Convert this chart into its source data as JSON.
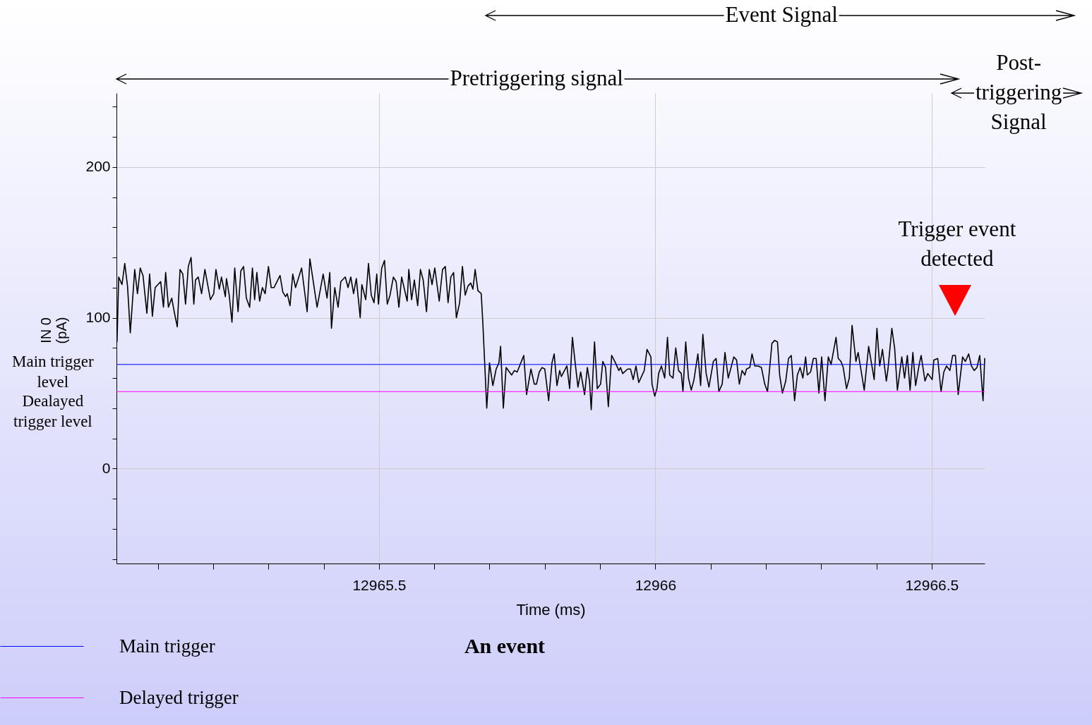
{
  "chart_data": {
    "type": "line",
    "title": "An event",
    "xlabel": "Time (ms)",
    "ylabel": "IN 0 (pA)",
    "xlim": [
      12965.025,
      12966.596
    ],
    "xticks": [
      {
        "value": 12965.1,
        "label": null
      },
      {
        "value": 12965.2,
        "label": null
      },
      {
        "value": 12965.3,
        "label": null
      },
      {
        "value": 12965.4,
        "label": null
      },
      12965.5,
      {
        "value": 12965.6,
        "label": null
      },
      {
        "value": 12965.7,
        "label": null
      },
      {
        "value": 12965.8,
        "label": null
      },
      {
        "value": 12965.9,
        "label": null
      },
      12966,
      {
        "value": 12966.1,
        "label": null
      },
      {
        "value": 12966.2,
        "label": null
      },
      {
        "value": 12966.3,
        "label": null
      },
      {
        "value": 12966.4,
        "label": null
      },
      12966.5
    ],
    "ylim": [
      -63,
      249
    ],
    "yticks": [
      {
        "value": -60,
        "label": null
      },
      {
        "value": -40,
        "label": null
      },
      {
        "value": -20,
        "label": null
      },
      0,
      {
        "value": 20,
        "label": null
      },
      {
        "value": 40,
        "label": null
      },
      {
        "value": 60,
        "label": null
      },
      {
        "value": 80,
        "label": null
      },
      100,
      {
        "value": 120,
        "label": null
      },
      {
        "value": 140,
        "label": null
      },
      {
        "value": 160,
        "label": null
      },
      {
        "value": 180,
        "label": null
      },
      200,
      {
        "value": 220,
        "label": null
      },
      {
        "value": 240,
        "label": null
      }
    ],
    "grid": true,
    "legend": "bottom left",
    "x": [
      12965.026,
      12965.029,
      12965.035,
      12965.04,
      12965.045,
      12965.05,
      12965.058,
      12965.063,
      12965.068,
      12965.073,
      12965.08,
      12965.085,
      12965.09,
      12965.095,
      12965.105,
      12965.11,
      12965.114,
      12965.119,
      12965.125,
      12965.13,
      12965.135,
      12965.14,
      12965.145,
      12965.15,
      12965.155,
      12965.16,
      12965.165,
      12965.168,
      12965.173,
      12965.179,
      12965.185,
      12965.195,
      12965.201,
      12965.205,
      12965.211,
      12965.215,
      12965.222,
      12965.224,
      12965.229,
      12965.234,
      12965.239,
      12965.245,
      12965.25,
      12965.255,
      12965.26,
      12965.266,
      12965.271,
      12965.275,
      12965.279,
      12965.284,
      12965.289,
      12965.294,
      12965.3,
      12965.305,
      12965.31,
      12965.321,
      12965.326,
      12965.331,
      12965.334,
      12965.339,
      12965.344,
      12965.349,
      12965.36,
      12965.37,
      12965.375,
      12965.388,
      12965.399,
      12965.406,
      12965.411,
      12965.414,
      12965.42,
      12965.426,
      12965.431,
      12965.439,
      12965.444,
      12965.449,
      12965.454,
      12965.459,
      12965.466,
      12965.469,
      12965.476,
      12965.481,
      12965.486,
      12965.491,
      12965.496,
      12965.499,
      12965.505,
      12965.51,
      12965.515,
      12965.52,
      12965.526,
      12965.531,
      12965.536,
      12965.541,
      12965.551,
      12965.554,
      12965.559,
      12965.564,
      12965.57,
      12965.575,
      12965.58,
      12965.586,
      12965.591,
      12965.596,
      12965.601,
      12965.609,
      12965.615,
      12965.62,
      12965.625,
      12965.63,
      12965.635,
      12965.64,
      12965.646,
      12965.651,
      12965.656,
      12965.661,
      12965.666,
      12965.67,
      12965.674,
      12965.679,
      12965.685,
      12965.688,
      12965.695,
      12965.7,
      12965.706,
      12965.712,
      12965.717,
      12965.72,
      12965.725,
      12965.73,
      12965.74,
      12965.745,
      12965.75,
      12965.762,
      12965.767,
      12965.775,
      12965.781,
      12965.785,
      12965.79,
      12965.795,
      12965.8,
      12965.807,
      12965.813,
      12965.817,
      12965.822,
      12965.827,
      12965.83,
      12965.84,
      12965.845,
      12965.85,
      12965.855,
      12965.86,
      12965.865,
      12965.872,
      12965.877,
      12965.881,
      12965.884,
      12965.89,
      12965.895,
      12965.901,
      12965.905,
      12965.91,
      12965.915,
      12965.921,
      12965.928,
      12965.934,
      12965.937,
      12965.941,
      12965.95,
      12965.955,
      12965.96,
      12965.965,
      12965.97,
      12965.98,
      12965.985,
      12965.992,
      12965.994,
      12965.999,
      12966.003,
      12966.006,
      12966.011,
      12966.017,
      12966.022,
      12966.026,
      12966.032,
      12966.037,
      12966.042,
      12966.047,
      12966.05,
      12966.055,
      12966.06,
      12966.065,
      12966.07,
      12966.077,
      12966.082,
      12966.086,
      12966.092,
      12966.097,
      12966.105,
      12966.11,
      12966.115,
      12966.121,
      12966.126,
      12966.132,
      12966.137,
      12966.142,
      12966.147,
      12966.152,
      12966.157,
      12966.162,
      12966.165,
      12966.171,
      12966.175,
      12966.18,
      12966.186,
      12966.192,
      12966.198,
      12966.203,
      12966.211,
      12966.216,
      12966.221,
      12966.225,
      12966.23,
      12966.236,
      12966.241,
      12966.246,
      12966.252,
      12966.257,
      12966.262,
      12966.267,
      12966.272,
      12966.275,
      12966.281,
      12966.286,
      12966.291,
      12966.296,
      12966.301,
      12966.307,
      12966.313,
      12966.318,
      12966.327,
      12966.331,
      12966.336,
      12966.34,
      12966.346,
      12966.351,
      12966.356,
      12966.363,
      12966.367,
      12966.378,
      12966.386,
      12966.396,
      12966.401,
      12966.406,
      12966.411,
      12966.418,
      12966.421,
      12966.428,
      12966.433,
      12966.438,
      12966.446,
      12966.451,
      12966.456,
      12966.461,
      12966.466,
      12966.471,
      12966.478,
      12966.481,
      12966.488,
      12966.493,
      12966.501,
      12966.504,
      12966.511,
      12966.517,
      12966.522,
      12966.527,
      12966.533,
      12966.538,
      12966.543,
      12966.548,
      12966.556,
      12966.561,
      12966.567,
      12966.572,
      12966.577,
      12966.582,
      12966.587,
      12966.593,
      12966.596
    ],
    "series": [
      {
        "color": "#000000",
        "values": [
          84,
          127,
          122,
          136,
          121,
          90,
          132,
          116,
          133,
          128,
          103,
          129,
          101,
          120,
          124,
          107,
          130,
          107,
          113,
          103,
          94,
          132,
          129,
          109,
          134,
          140,
          109,
          125,
          127,
          116,
          132,
          112,
          116,
          132,
          119,
          127,
          114,
          126,
          115,
          97,
          133,
          104,
          131,
          134,
          113,
          107,
          133,
          112,
          130,
          111,
          120,
          116,
          134,
          120,
          120,
          128,
          117,
          114,
          116,
          108,
          129,
          120,
          133,
          104,
          139,
          107,
          129,
          113,
          130,
          93,
          120,
          107,
          124,
          127,
          120,
          127,
          116,
          126,
          100,
          122,
          112,
          136,
          115,
          110,
          129,
          109,
          133,
          138,
          109,
          115,
          127,
          124,
          107,
          127,
          111,
          132,
          112,
          125,
          108,
          132,
          125,
          104,
          132,
          122,
          133,
          111,
          132,
          134,
          110,
          127,
          130,
          100,
          110,
          134,
          115,
          121,
          123,
          119,
          132,
          118,
          116,
          96,
          40,
          70,
          55,
          66,
          70,
          81,
          40,
          67,
          62,
          65,
          64,
          75,
          49,
          66,
          56,
          56,
          64,
          67,
          66,
          45,
          70,
          76,
          55,
          65,
          61,
          68,
          53,
          87,
          70,
          54,
          64,
          49,
          67,
          58,
          39,
          84,
          53,
          56,
          71,
          67,
          41,
          75,
          70,
          65,
          67,
          63,
          66,
          66,
          59,
          68,
          57,
          65,
          79,
          74,
          56,
          48,
          53,
          63,
          68,
          60,
          87,
          62,
          60,
          80,
          65,
          63,
          51,
          84,
          60,
          52,
          59,
          76,
          55,
          89,
          63,
          54,
          71,
          73,
          51,
          56,
          77,
          60,
          67,
          74,
          72,
          56,
          65,
          62,
          66,
          67,
          76,
          68,
          68,
          67,
          56,
          51,
          83,
          85,
          84,
          62,
          50,
          58,
          73,
          75,
          45,
          62,
          67,
          60,
          74,
          62,
          64,
          73,
          73,
          50,
          74,
          45,
          74,
          69,
          87,
          73,
          71,
          67,
          53,
          60,
          95,
          71,
          77,
          52,
          81,
          59,
          93,
          68,
          79,
          58,
          66,
          93,
          80,
          52,
          74,
          60,
          75,
          52,
          77,
          55,
          70,
          75,
          58,
          63,
          59,
          72,
          73,
          51,
          64,
          68,
          65,
          75,
          75,
          49,
          74,
          71,
          76,
          68,
          65,
          67,
          75,
          45,
          73
        ]
      }
    ],
    "ref_lines": [
      {
        "axis": "y",
        "value": 69,
        "label": "Main trigger",
        "color": "#0000ff"
      },
      {
        "axis": "y",
        "value": 51,
        "label": "Delayed trigger",
        "color": "#ff00ff"
      }
    ],
    "annotations": [
      "Event Signal",
      "Pretriggering signal",
      "Post-triggering Signal",
      "Trigger event detected",
      "Main trigger level",
      "Dealayed trigger level"
    ]
  }
}
